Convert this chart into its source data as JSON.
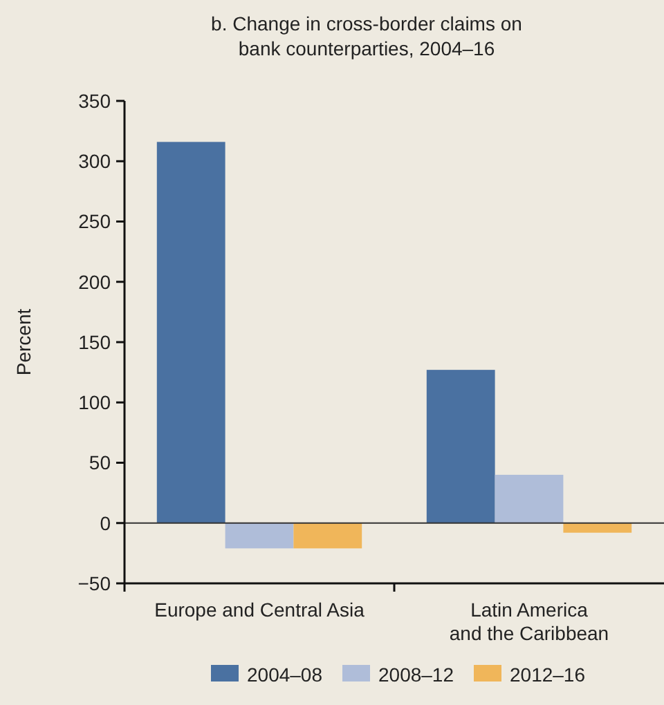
{
  "chart_data": {
    "type": "bar",
    "title": "b. Change in cross-border claims on bank counterparties, 2004–16",
    "ylabel": "Percent",
    "categories": [
      "Europe and Central Asia",
      "Latin America\nand the Caribbean"
    ],
    "series": [
      {
        "name": "2004–08",
        "color": "#4a71a1",
        "values": [
          316,
          127
        ]
      },
      {
        "name": "2008–12",
        "color": "#afbdd9",
        "values": [
          -21,
          40
        ]
      },
      {
        "name": "2012–16",
        "color": "#f0b65a",
        "values": [
          -21,
          -8
        ]
      }
    ],
    "ylim": [
      -50,
      350
    ],
    "yticks": [
      -50,
      0,
      50,
      100,
      150,
      200,
      250,
      300,
      350
    ],
    "legend": "bottom"
  }
}
